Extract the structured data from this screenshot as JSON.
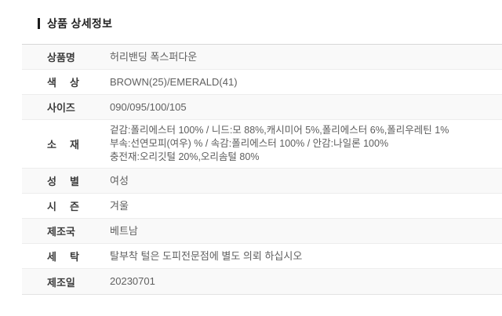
{
  "header": {
    "title": "상품 상세정보"
  },
  "colors": {
    "accent_bar": "#1b1b1b",
    "label_text": "#3c3c3c",
    "value_text": "#606060",
    "row_alt_bg": "#f9f9f9",
    "row_bg": "#ffffff",
    "separator": "#ededed",
    "top_border": "#d7d7d7"
  },
  "table": {
    "rows": [
      {
        "label": "상품명",
        "value": "허리밴딩 폭스퍼다운"
      },
      {
        "label": "색 상",
        "value": "BROWN(25)/EMERALD(41)"
      },
      {
        "label": "사이즈",
        "value": "090/095/100/105"
      },
      {
        "label": "소 재",
        "value_lines": [
          "겉감:폴리에스터 100% / 니드:모 88%,캐시미어 5%,폴리에스터 6%,폴리우레틴 1%",
          "부속:선연모피(여우) % / 속감:폴리에스터 100% / 안감:나일론 100%",
          "충전재:오리깃털 20%,오리솜털 80%"
        ]
      },
      {
        "label": "성 별",
        "value": "여성"
      },
      {
        "label": "시 즌",
        "value": "겨울"
      },
      {
        "label": "제조국",
        "value": "베트남"
      },
      {
        "label": "세 탁",
        "value": "탈부착 털은 도피전문점에 별도 의뢰 하십시오"
      },
      {
        "label": "제조일",
        "value": "20230701"
      }
    ]
  }
}
